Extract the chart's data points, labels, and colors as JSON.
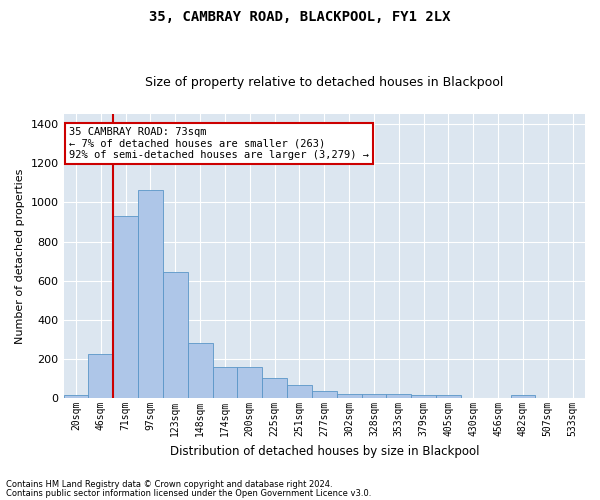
{
  "title": "35, CAMBRAY ROAD, BLACKPOOL, FY1 2LX",
  "subtitle": "Size of property relative to detached houses in Blackpool",
  "xlabel": "Distribution of detached houses by size in Blackpool",
  "ylabel": "Number of detached properties",
  "footnote1": "Contains HM Land Registry data © Crown copyright and database right 2024.",
  "footnote2": "Contains public sector information licensed under the Open Government Licence v3.0.",
  "annotation_line1": "35 CAMBRAY ROAD: 73sqm",
  "annotation_line2": "← 7% of detached houses are smaller (263)",
  "annotation_line3": "92% of semi-detached houses are larger (3,279) →",
  "bar_categories": [
    "20sqm",
    "46sqm",
    "71sqm",
    "97sqm",
    "123sqm",
    "148sqm",
    "174sqm",
    "200sqm",
    "225sqm",
    "251sqm",
    "277sqm",
    "302sqm",
    "328sqm",
    "353sqm",
    "379sqm",
    "405sqm",
    "430sqm",
    "456sqm",
    "482sqm",
    "507sqm",
    "533sqm"
  ],
  "bar_values": [
    15,
    225,
    930,
    1065,
    645,
    280,
    160,
    160,
    105,
    65,
    35,
    20,
    20,
    20,
    15,
    15,
    0,
    0,
    15,
    0,
    0
  ],
  "bar_color": "#aec6e8",
  "bar_edge_color": "#5a96c8",
  "line_color": "#cc0000",
  "ylim": [
    0,
    1450
  ],
  "yticks": [
    0,
    200,
    400,
    600,
    800,
    1000,
    1200,
    1400
  ],
  "background_color": "#dce6f0",
  "grid_color": "#ffffff",
  "fig_background": "#ffffff",
  "annotation_box_color": "#ffffff",
  "annotation_box_edge": "#cc0000"
}
